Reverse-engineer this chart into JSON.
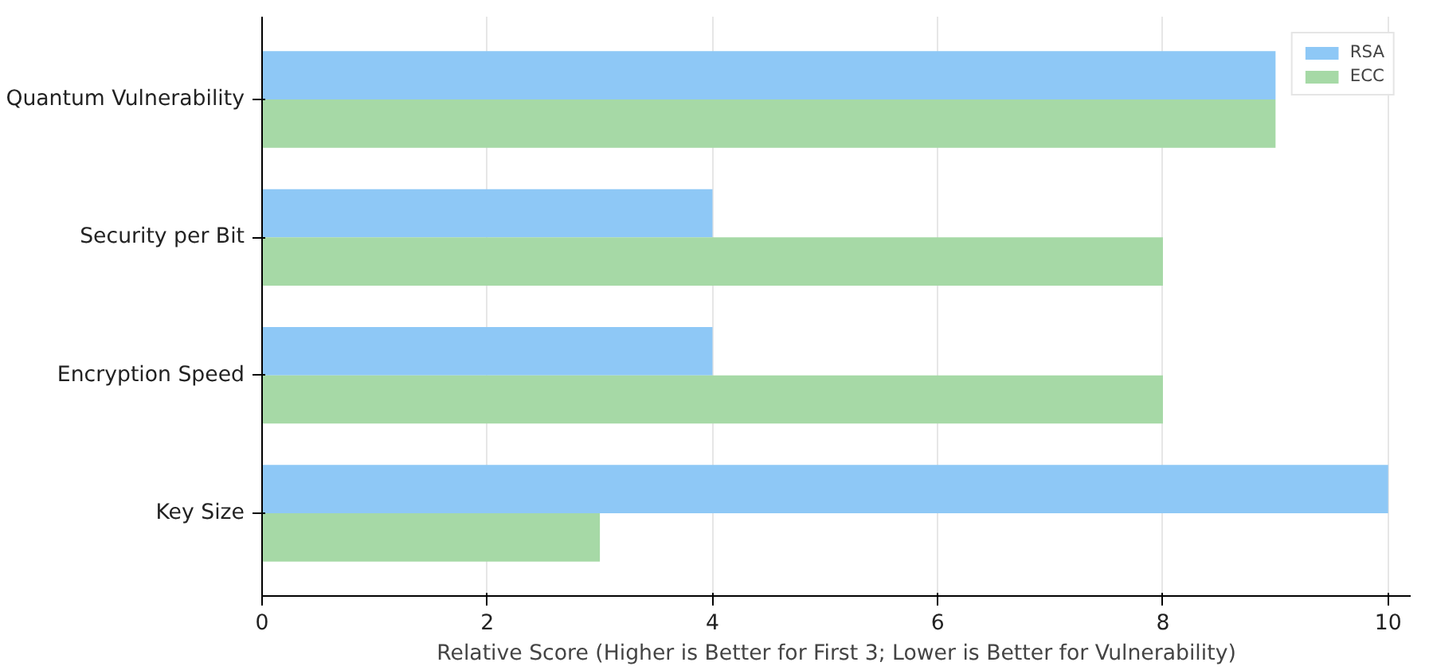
{
  "chart_data": {
    "type": "bar",
    "orientation": "horizontal",
    "xlabel": "Relative Score (Higher is Better for First 3; Lower is Better for Vulnerability)",
    "categories": [
      "Quantum Vulnerability",
      "Security per Bit",
      "Encryption Speed",
      "Key Size"
    ],
    "series": [
      {
        "name": "RSA",
        "color": "#8ec8f6",
        "values": [
          9,
          4,
          4,
          10
        ]
      },
      {
        "name": "ECC",
        "color": "#a6d9a6",
        "values": [
          9,
          8,
          8,
          3
        ]
      }
    ],
    "xlim": [
      0,
      10.2
    ],
    "xticks": [
      0,
      2,
      4,
      6,
      8,
      10
    ],
    "grid": "x",
    "legend": "top right"
  }
}
